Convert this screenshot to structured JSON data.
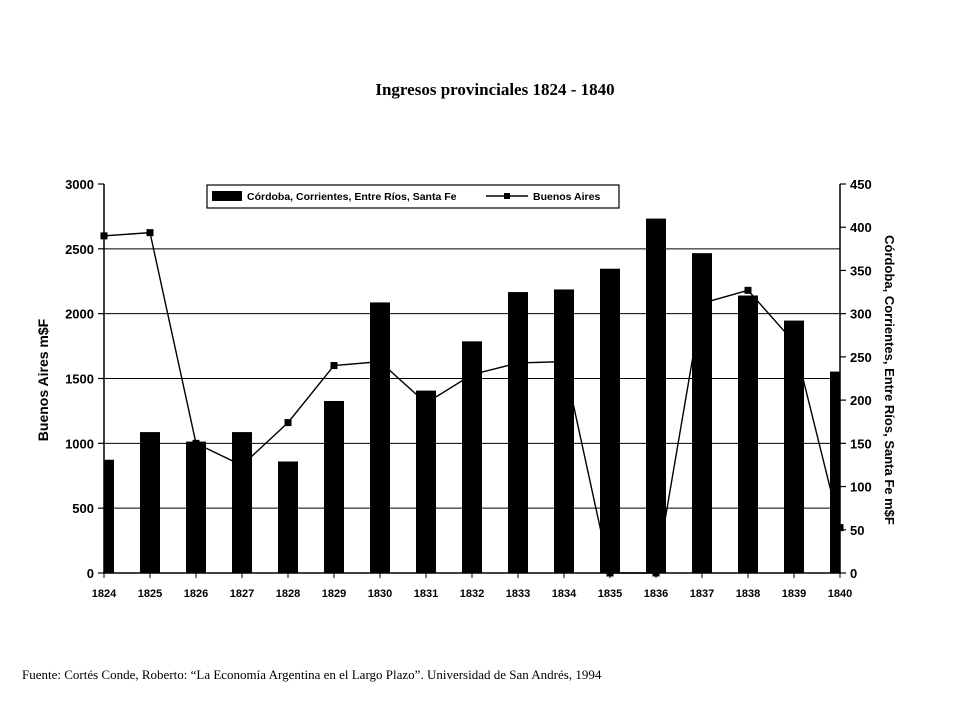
{
  "chart_data": {
    "type": "bar",
    "title": "Ingresos provinciales 1824 - 1840",
    "categories": [
      "1824",
      "1825",
      "1826",
      "1827",
      "1828",
      "1829",
      "1830",
      "1831",
      "1832",
      "1833",
      "1834",
      "1835",
      "1836",
      "1837",
      "1838",
      "1839",
      "1840"
    ],
    "ylabel_left": "Buenos Aires m$F",
    "ylabel_right": "Córdoba, Corrientes, Entre Ríos, Santa Fe m$F",
    "ylim_left": [
      0,
      3000
    ],
    "yticks_left": [
      "0",
      "500",
      "1000",
      "1500",
      "2000",
      "2500",
      "3000"
    ],
    "ylim_right": [
      0,
      450
    ],
    "yticks_right": [
      "0",
      "50",
      "100",
      "150",
      "200",
      "250",
      "300",
      "350",
      "400",
      "450"
    ],
    "grid": "horizontal",
    "legend_position": "top",
    "series": [
      {
        "name": "Córdoba, Corrientes, Entre Ríos, Santa Fe",
        "kind": "bar",
        "axis": "right",
        "color": "#000000",
        "values": [
          131,
          163,
          152,
          163,
          129,
          199,
          313,
          211,
          268,
          325,
          328,
          352,
          410,
          370,
          321,
          292,
          233
        ]
      },
      {
        "name": "Buenos Aires",
        "kind": "line",
        "axis": "left",
        "color": "#000000",
        "values": [
          2600,
          2625,
          1000,
          830,
          1160,
          1600,
          1630,
          1310,
          1530,
          1620,
          1630,
          0,
          0,
          2080,
          2180,
          1780,
          350
        ]
      }
    ]
  },
  "source_note": "Fuente: Cortés Conde, Roberto: “La Economía Argentina en el Largo Plazo”. Universidad de San Andrés, 1994"
}
